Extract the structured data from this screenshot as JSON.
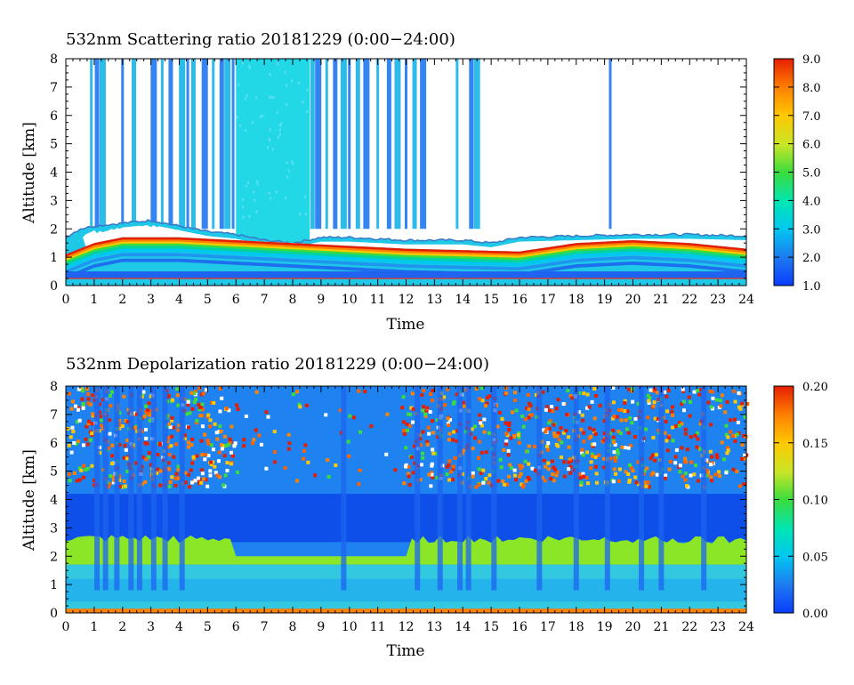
{
  "chart_data": [
    {
      "type": "heatmap",
      "title": "532nm Scattering ratio  20181229 (0:00−24:00)",
      "xlabel": "Time",
      "ylabel": "Altitude [km]",
      "xlim": [
        0,
        24
      ],
      "ylim": [
        0,
        8
      ],
      "x_ticks": [
        "0",
        "1",
        "2",
        "3",
        "4",
        "5",
        "6",
        "7",
        "8",
        "9",
        "10",
        "11",
        "12",
        "13",
        "14",
        "15",
        "16",
        "17",
        "18",
        "19",
        "20",
        "21",
        "22",
        "23",
        "24"
      ],
      "y_ticks": [
        "0",
        "1",
        "2",
        "3",
        "4",
        "5",
        "6",
        "7",
        "8"
      ],
      "colorbar": {
        "range": [
          1.0,
          9.0
        ],
        "ticks": [
          "1.0",
          "2.0",
          "3.0",
          "4.0",
          "5.0",
          "6.0",
          "7.0",
          "8.0",
          "9.0"
        ]
      },
      "features": {
        "boundary_layer_top_km": [
          [
            0,
            1.7
          ],
          [
            0.5,
            2.0
          ],
          [
            1,
            2.1
          ],
          [
            2,
            2.2
          ],
          [
            3,
            2.3
          ],
          [
            4,
            2.1
          ],
          [
            5,
            1.9
          ],
          [
            6,
            1.8
          ],
          [
            7,
            1.6
          ],
          [
            8,
            1.5
          ],
          [
            9,
            1.7
          ],
          [
            10,
            1.7
          ],
          [
            12,
            1.6
          ],
          [
            13,
            1.6
          ],
          [
            14,
            1.6
          ],
          [
            15,
            1.5
          ],
          [
            16,
            1.7
          ],
          [
            18,
            1.75
          ],
          [
            20,
            1.8
          ],
          [
            22,
            1.8
          ],
          [
            24,
            1.75
          ]
        ],
        "high_signal_layer_km": [
          [
            0,
            0.8
          ],
          [
            1,
            1.2
          ],
          [
            2,
            1.4
          ],
          [
            4,
            1.4
          ],
          [
            6,
            1.3
          ],
          [
            8,
            1.2
          ],
          [
            10,
            1.1
          ],
          [
            12,
            1.0
          ],
          [
            14,
            0.95
          ],
          [
            16,
            0.9
          ],
          [
            18,
            1.2
          ],
          [
            20,
            1.3
          ],
          [
            22,
            1.2
          ],
          [
            24,
            1.0
          ]
        ],
        "cloud_free_columns": [
          [
            6.0,
            8.6
          ]
        ],
        "thin_cloud_streaks_hours": [
          0.9,
          1.1,
          1.3,
          2.0,
          2.4,
          3.1,
          3.4,
          3.7,
          4.1,
          4.3,
          4.5,
          4.9,
          5.2,
          5.5,
          5.7,
          5.9,
          8.7,
          8.9,
          9.2,
          9.5,
          9.8,
          10.0,
          10.3,
          10.6,
          11.0,
          11.4,
          11.7,
          12.0,
          12.3,
          12.6,
          13.8,
          14.3,
          14.5,
          19.2
        ]
      }
    },
    {
      "type": "heatmap",
      "title": "532nm Depolarization ratio  20181229 (0:00−24:00)",
      "xlabel": "Time",
      "ylabel": "Altitude [km]",
      "xlim": [
        0,
        24
      ],
      "ylim": [
        0,
        8
      ],
      "x_ticks": [
        "0",
        "1",
        "2",
        "3",
        "4",
        "5",
        "6",
        "7",
        "8",
        "9",
        "10",
        "11",
        "12",
        "13",
        "14",
        "15",
        "16",
        "17",
        "18",
        "19",
        "20",
        "21",
        "22",
        "23",
        "24"
      ],
      "y_ticks": [
        "0",
        "1",
        "2",
        "3",
        "4",
        "5",
        "6",
        "7",
        "8"
      ],
      "colorbar": {
        "range": [
          0.0,
          0.2
        ],
        "ticks": [
          "0.00",
          "0.05",
          "0.10",
          "0.15",
          "0.20"
        ]
      },
      "features": {
        "noisy_high_region_km": [
          4.5,
          8.0
        ],
        "low_depol_band_km": [
          2.5,
          4.2
        ],
        "green_layer_km": [
          1.6,
          2.8
        ],
        "surface_layer_km": [
          0.0,
          0.15
        ]
      }
    }
  ]
}
